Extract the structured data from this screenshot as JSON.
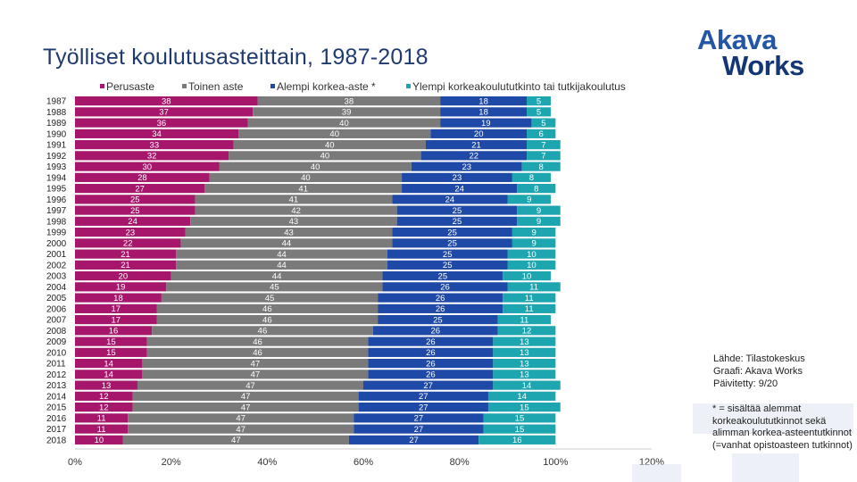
{
  "title": "Työlliset koulutusasteittain, 1987-2018",
  "logo": {
    "line1": "Akava",
    "line2": "Works"
  },
  "source": {
    "line1": "Lähde: Tilastokeskus",
    "line2": "Graafi: Akava Works",
    "line3": "Päivitetty: 9/20"
  },
  "footnote": "* = sisältää alemmat korkeakoulututkinnot sekä alimman korkea-asteentutkinnot (=vanhat opistoasteen tutkinnot)",
  "chart_data": {
    "type": "bar",
    "orientation": "horizontal",
    "stacked": true,
    "title": "Työlliset koulutusasteittain, 1987-2018",
    "xlabel": "",
    "ylabel": "",
    "xlim": [
      0,
      120
    ],
    "x_ticks": [
      "0%",
      "20%",
      "40%",
      "60%",
      "80%",
      "100%",
      "120%"
    ],
    "legend_position": "top",
    "categories": [
      "1987",
      "1988",
      "1989",
      "1990",
      "1991",
      "1992",
      "1993",
      "1994",
      "1995",
      "1996",
      "1997",
      "1998",
      "1999",
      "2000",
      "2001",
      "2002",
      "2003",
      "2004",
      "2005",
      "2006",
      "2007",
      "2008",
      "2009",
      "2010",
      "2011",
      "2012",
      "2013",
      "2014",
      "2015",
      "2016",
      "2017",
      "2018"
    ],
    "series": [
      {
        "name": "Perusaste",
        "color": "#a6166b",
        "values": [
          38,
          37,
          36,
          34,
          33,
          32,
          30,
          28,
          27,
          25,
          25,
          24,
          23,
          22,
          21,
          21,
          20,
          19,
          18,
          17,
          17,
          16,
          15,
          15,
          14,
          14,
          13,
          12,
          12,
          11,
          11,
          10
        ]
      },
      {
        "name": "Toinen aste",
        "color": "#7a7a7a",
        "values": [
          38,
          39,
          40,
          40,
          40,
          40,
          40,
          40,
          41,
          41,
          42,
          43,
          43,
          44,
          44,
          44,
          44,
          45,
          45,
          46,
          46,
          46,
          46,
          46,
          47,
          47,
          47,
          47,
          47,
          47,
          47,
          47
        ]
      },
      {
        "name": "Alempi korkea-aste *",
        "color": "#1f49a6",
        "values": [
          18,
          18,
          19,
          20,
          21,
          22,
          23,
          23,
          24,
          24,
          25,
          25,
          25,
          25,
          25,
          25,
          25,
          26,
          26,
          26,
          25,
          26,
          26,
          26,
          26,
          26,
          27,
          27,
          27,
          27,
          27,
          27
        ]
      },
      {
        "name": "Ylempi korkeakoulututkinto tai tutkijakoulutus",
        "color": "#1ea6b0",
        "values": [
          5,
          5,
          5,
          6,
          7,
          7,
          8,
          8,
          8,
          9,
          9,
          9,
          9,
          9,
          10,
          10,
          10,
          11,
          11,
          11,
          11,
          12,
          13,
          13,
          13,
          13,
          14,
          14,
          15,
          15,
          15,
          16
        ]
      }
    ]
  }
}
